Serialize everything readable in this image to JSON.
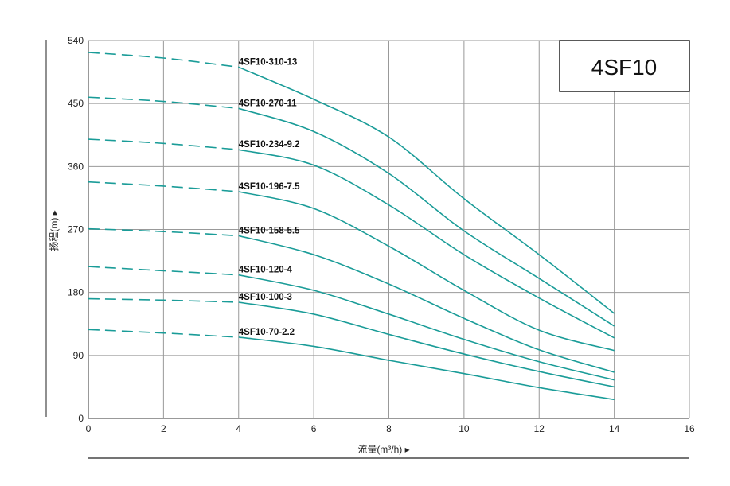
{
  "chart_data": {
    "type": "line",
    "title": "4SF10",
    "xlabel": "流量(m³/h) ▸",
    "ylabel": "扬程(m) ▸",
    "xlim": [
      0,
      16
    ],
    "ylim": [
      0,
      540
    ],
    "xticks": [
      0,
      2,
      4,
      6,
      8,
      10,
      12,
      14,
      16
    ],
    "yticks": [
      0,
      90,
      180,
      270,
      360,
      450,
      540
    ],
    "grid": true,
    "line_color": "#1a9c98",
    "dashed_until_x": 4,
    "x": [
      0,
      2,
      4,
      6,
      8,
      10,
      12,
      14
    ],
    "series": [
      {
        "name": "4SF10-310-13",
        "values": [
          523,
          515,
          502,
          456,
          402,
          314,
          234,
          150
        ]
      },
      {
        "name": "4SF10-270-11",
        "values": [
          459,
          453,
          443,
          410,
          350,
          268,
          200,
          132
        ]
      },
      {
        "name": "4SF10-234-9.2",
        "values": [
          399,
          393,
          384,
          362,
          305,
          234,
          172,
          115
        ]
      },
      {
        "name": "4SF10-196-7.5",
        "values": [
          338,
          332,
          324,
          300,
          246,
          183,
          126,
          97
        ]
      },
      {
        "name": "4SF10-158-5.5",
        "values": [
          271,
          267,
          261,
          234,
          192,
          143,
          98,
          66
        ]
      },
      {
        "name": "4SF10-120-4",
        "values": [
          217,
          211,
          205,
          183,
          149,
          113,
          81,
          55
        ]
      },
      {
        "name": "4SF10-100-3",
        "values": [
          171,
          169,
          166,
          149,
          120,
          92,
          67,
          45
        ]
      },
      {
        "name": "4SF10-70-2.2",
        "values": [
          127,
          122,
          116,
          103,
          83,
          64,
          44,
          27
        ]
      }
    ]
  }
}
